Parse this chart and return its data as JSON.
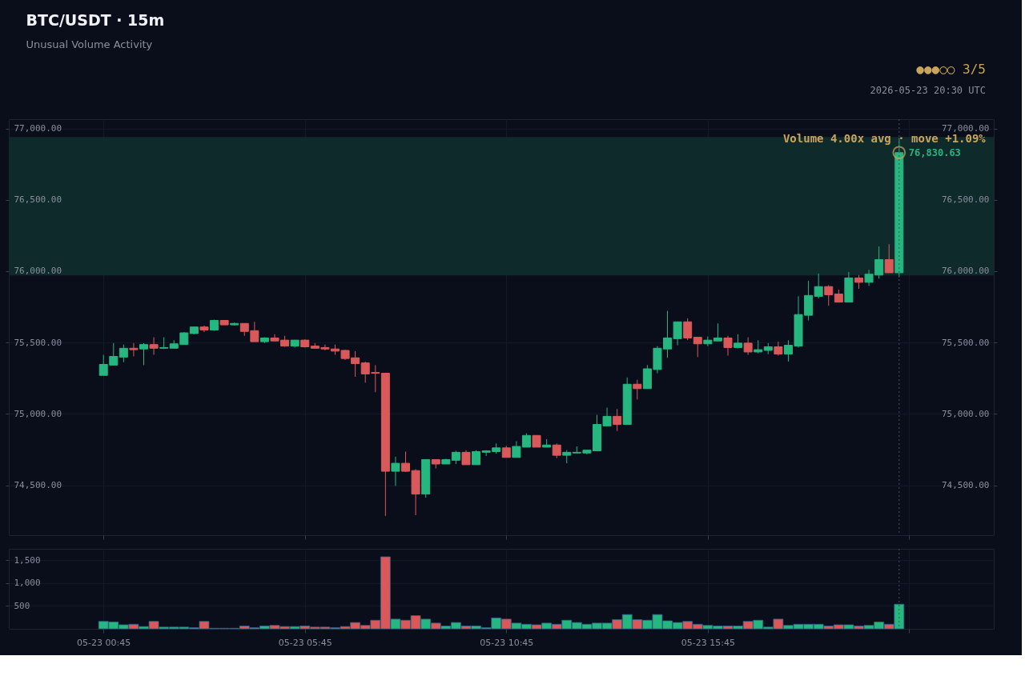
{
  "chart_data": [
    {
      "type": "candlestick",
      "title": "BTC/USDT  ·  15m",
      "subtitle": "Unusual Volume Activity",
      "annotations": [
        {
          "text": "Volume 4.00x avg  ·  move +1.09%",
          "x": "2026-05-23T20:30",
          "y": 76925
        },
        {
          "text": "76,830.63",
          "x": "2026-05-23T20:30",
          "y": 76830.63
        },
        "●●●○○  3/5",
        "2026-05-23 20:30 UTC"
      ],
      "x": [
        "2026-05-23T00:45",
        "2026-05-23T01:00",
        "2026-05-23T01:15",
        "2026-05-23T01:30",
        "2026-05-23T01:45",
        "2026-05-23T02:00",
        "2026-05-23T02:15",
        "2026-05-23T02:30",
        "2026-05-23T02:45",
        "2026-05-23T03:00",
        "2026-05-23T03:15",
        "2026-05-23T03:30",
        "2026-05-23T03:45",
        "2026-05-23T04:00",
        "2026-05-23T04:15",
        "2026-05-23T04:30",
        "2026-05-23T04:45",
        "2026-05-23T05:00",
        "2026-05-23T05:15",
        "2026-05-23T05:30",
        "2026-05-23T05:45",
        "2026-05-23T06:00",
        "2026-05-23T06:15",
        "2026-05-23T06:30",
        "2026-05-23T06:45",
        "2026-05-23T07:00",
        "2026-05-23T07:15",
        "2026-05-23T07:30",
        "2026-05-23T07:45",
        "2026-05-23T08:00",
        "2026-05-23T08:15",
        "2026-05-23T08:30",
        "2026-05-23T08:45",
        "2026-05-23T09:00",
        "2026-05-23T09:15",
        "2026-05-23T09:30",
        "2026-05-23T09:45",
        "2026-05-23T10:00",
        "2026-05-23T10:15",
        "2026-05-23T10:30",
        "2026-05-23T10:45",
        "2026-05-23T11:00",
        "2026-05-23T11:15",
        "2026-05-23T11:30",
        "2026-05-23T11:45",
        "2026-05-23T12:00",
        "2026-05-23T12:15",
        "2026-05-23T12:30",
        "2026-05-23T12:45",
        "2026-05-23T13:00",
        "2026-05-23T13:15",
        "2026-05-23T13:30",
        "2026-05-23T13:45",
        "2026-05-23T14:00",
        "2026-05-23T14:15",
        "2026-05-23T14:30",
        "2026-05-23T14:45",
        "2026-05-23T15:00",
        "2026-05-23T15:15",
        "2026-05-23T15:30",
        "2026-05-23T15:45",
        "2026-05-23T16:00",
        "2026-05-23T16:15",
        "2026-05-23T16:30",
        "2026-05-23T16:45",
        "2026-05-23T17:00",
        "2026-05-23T17:15",
        "2026-05-23T17:30",
        "2026-05-23T17:45",
        "2026-05-23T18:00",
        "2026-05-23T18:15",
        "2026-05-23T18:30",
        "2026-05-23T18:45",
        "2026-05-23T19:00",
        "2026-05-23T19:15",
        "2026-05-23T19:30",
        "2026-05-23T19:45",
        "2026-05-23T20:00",
        "2026-05-23T20:15",
        "2026-05-23T20:30"
      ],
      "ohlc": [
        [
          75270,
          75414,
          75270,
          75347
        ],
        [
          75342,
          75496,
          75342,
          75403
        ],
        [
          75398,
          75486,
          75362,
          75460
        ],
        [
          75460,
          75496,
          75403,
          75450
        ],
        [
          75455,
          75496,
          75342,
          75486
        ],
        [
          75486,
          75537,
          75414,
          75460
        ],
        [
          75460,
          75537,
          75455,
          75465
        ],
        [
          75460,
          75516,
          75460,
          75491
        ],
        [
          75486,
          75573,
          75486,
          75568
        ],
        [
          75563,
          75609,
          75558,
          75609
        ],
        [
          75609,
          75619,
          75573,
          75588
        ],
        [
          75588,
          75660,
          75583,
          75655
        ],
        [
          75655,
          75655,
          75624,
          75624
        ],
        [
          75624,
          75640,
          75619,
          75634
        ],
        [
          75634,
          75634,
          75547,
          75578
        ],
        [
          75583,
          75645,
          75506,
          75506
        ],
        [
          75506,
          75537,
          75496,
          75532
        ],
        [
          75532,
          75558,
          75511,
          75511
        ],
        [
          75517,
          75547,
          75470,
          75475
        ],
        [
          75475,
          75517,
          75465,
          75517
        ],
        [
          75517,
          75522,
          75465,
          75470
        ],
        [
          75475,
          75496,
          75460,
          75460
        ],
        [
          75465,
          75486,
          75445,
          75455
        ],
        [
          75455,
          75486,
          75414,
          75440
        ],
        [
          75445,
          75450,
          75378,
          75388
        ],
        [
          75393,
          75440,
          75260,
          75352
        ],
        [
          75357,
          75367,
          75219,
          75280
        ],
        [
          75290,
          75342,
          75152,
          75285
        ],
        [
          75285,
          75285,
          74285,
          74598
        ],
        [
          74598,
          74700,
          74495,
          74654
        ],
        [
          74654,
          74736,
          74593,
          74598
        ],
        [
          74603,
          74613,
          74290,
          74438
        ],
        [
          74438,
          74680,
          74413,
          74680
        ],
        [
          74680,
          74680,
          74618,
          74649
        ],
        [
          74649,
          74685,
          74649,
          74680
        ],
        [
          74675,
          74741,
          74649,
          74731
        ],
        [
          74731,
          74746,
          74644,
          74644
        ],
        [
          74644,
          74746,
          74644,
          74736
        ],
        [
          74731,
          74746,
          74705,
          74741
        ],
        [
          74736,
          74793,
          74721,
          74762
        ],
        [
          74762,
          74777,
          74695,
          74695
        ],
        [
          74695,
          74808,
          74695,
          74772
        ],
        [
          74767,
          74864,
          74767,
          74849
        ],
        [
          74849,
          74849,
          74767,
          74767
        ],
        [
          74767,
          74823,
          74767,
          74782
        ],
        [
          74782,
          74793,
          74690,
          74710
        ],
        [
          74710,
          74746,
          74654,
          74731
        ],
        [
          74726,
          74772,
          74726,
          74731
        ],
        [
          74726,
          74746,
          74716,
          74746
        ],
        [
          74741,
          74993,
          74741,
          74926
        ],
        [
          74916,
          75044,
          74916,
          74983
        ],
        [
          74983,
          75034,
          74880,
          74926
        ],
        [
          74926,
          75255,
          74926,
          75208
        ],
        [
          75208,
          75239,
          75101,
          75177
        ],
        [
          75177,
          75342,
          75177,
          75316
        ],
        [
          75311,
          75475,
          75285,
          75460
        ],
        [
          75455,
          75722,
          75393,
          75532
        ],
        [
          75527,
          75645,
          75481,
          75645
        ],
        [
          75645,
          75670,
          75517,
          75532
        ],
        [
          75537,
          75537,
          75398,
          75491
        ],
        [
          75491,
          75542,
          75475,
          75517
        ],
        [
          75511,
          75634,
          75511,
          75532
        ],
        [
          75532,
          75547,
          75409,
          75465
        ],
        [
          75465,
          75558,
          75460,
          75496
        ],
        [
          75496,
          75537,
          75414,
          75434
        ],
        [
          75434,
          75516,
          75424,
          75450
        ],
        [
          75445,
          75496,
          75419,
          75470
        ],
        [
          75470,
          75506,
          75409,
          75419
        ],
        [
          75419,
          75516,
          75367,
          75481
        ],
        [
          75475,
          75824,
          75465,
          75696
        ],
        [
          75691,
          75932,
          75655,
          75830
        ],
        [
          75824,
          75984,
          75809,
          75892
        ],
        [
          75892,
          75902,
          75758,
          75835
        ],
        [
          75840,
          75871,
          75783,
          75783
        ],
        [
          75783,
          75994,
          75783,
          75953
        ],
        [
          75953,
          75973,
          75876,
          75922
        ],
        [
          75922,
          76009,
          75897,
          75979
        ],
        [
          75973,
          76174,
          75948,
          76081
        ],
        [
          76081,
          76189,
          75989,
          75989
        ],
        [
          75989,
          76933,
          75958,
          76830.63
        ]
      ],
      "colors": [
        "#26b67f",
        "#26b67f",
        "#26b67f",
        "#d9595b",
        "#26b67f",
        "#d9595b",
        "#26b67f",
        "#26b67f",
        "#26b67f",
        "#26b67f",
        "#d9595b",
        "#26b67f",
        "#d9595b",
        "#26b67f",
        "#d9595b",
        "#d9595b",
        "#26b67f",
        "#d9595b",
        "#d9595b",
        "#26b67f",
        "#d9595b",
        "#d9595b",
        "#d9595b",
        "#d9595b",
        "#d9595b",
        "#d9595b",
        "#d9595b",
        "#d9595b",
        "#d9595b",
        "#26b67f",
        "#d9595b",
        "#d9595b",
        "#26b67f",
        "#d9595b",
        "#26b67f",
        "#26b67f",
        "#d9595b",
        "#26b67f",
        "#26b67f",
        "#26b67f",
        "#d9595b",
        "#26b67f",
        "#26b67f",
        "#d9595b",
        "#26b67f",
        "#d9595b",
        "#26b67f",
        "#26b67f",
        "#26b67f",
        "#26b67f",
        "#26b67f",
        "#d9595b",
        "#26b67f",
        "#d9595b",
        "#26b67f",
        "#26b67f",
        "#26b67f",
        "#26b67f",
        "#d9595b",
        "#d9595b",
        "#26b67f",
        "#26b67f",
        "#d9595b",
        "#26b67f",
        "#d9595b",
        "#26b67f",
        "#26b67f",
        "#d9595b",
        "#26b67f",
        "#26b67f",
        "#26b67f",
        "#26b67f",
        "#d9595b",
        "#d9595b",
        "#26b67f",
        "#d9595b",
        "#26b67f",
        "#26b67f",
        "#d9595b",
        "#26b67f"
      ],
      "series": [
        {
          "type": "scatter",
          "x": [
            "2026-05-23T20:30"
          ],
          "values": [
            76830.63
          ],
          "color": "#c9a45c",
          "marker": "circle"
        }
      ],
      "bands": [
        {
          "axis": "y",
          "from": 75970,
          "to": 76940,
          "color": "#0f2a2a"
        }
      ],
      "ref_lines": [
        {
          "axis": "x",
          "value": "2026-05-23T20:30",
          "color": "#4a4f5c",
          "line_style": "dotted"
        }
      ],
      "xlim": [
        "2026-05-22T22:30",
        "2026-05-23T22:45"
      ],
      "xticks": [
        {
          "value": "2026-05-23T00:45",
          "label": null
        },
        {
          "value": "2026-05-23T05:45",
          "label": null
        },
        {
          "value": "2026-05-23T10:45",
          "label": null
        },
        {
          "value": "2026-05-23T15:45",
          "label": null
        },
        {
          "value": "2026-05-23T20:45",
          "label": null
        }
      ],
      "ylim": [
        74150,
        77065
      ],
      "yticks": [
        {
          "value": 74500,
          "label": "74,500.00"
        },
        {
          "value": 75000,
          "label": "75,000.00"
        },
        {
          "value": 75500,
          "label": "75,500.00"
        },
        {
          "value": 76000,
          "label": "76,000.00"
        },
        {
          "value": 76500,
          "label": "76,500.00"
        },
        {
          "value": 77000,
          "label": "77,000.00"
        }
      ],
      "y2lim": [
        74150,
        77065
      ],
      "y2ticks": [
        {
          "value": 74500,
          "label": "74,500.00"
        },
        {
          "value": 75000,
          "label": "75,000.00"
        },
        {
          "value": 75500,
          "label": "75,500.00"
        },
        {
          "value": 76000,
          "label": "76,000.00"
        },
        {
          "value": 76500,
          "label": "76,500.00"
        },
        {
          "value": 77000,
          "label": "77,000.00"
        }
      ],
      "tick_labels": "y",
      "grid": true
    },
    {
      "type": "bar",
      "x": [
        "2026-05-23T00:45",
        "2026-05-23T01:00",
        "2026-05-23T01:15",
        "2026-05-23T01:30",
        "2026-05-23T01:45",
        "2026-05-23T02:00",
        "2026-05-23T02:15",
        "2026-05-23T02:30",
        "2026-05-23T02:45",
        "2026-05-23T03:00",
        "2026-05-23T03:15",
        "2026-05-23T03:30",
        "2026-05-23T03:45",
        "2026-05-23T04:00",
        "2026-05-23T04:15",
        "2026-05-23T04:30",
        "2026-05-23T04:45",
        "2026-05-23T05:00",
        "2026-05-23T05:15",
        "2026-05-23T05:30",
        "2026-05-23T05:45",
        "2026-05-23T06:00",
        "2026-05-23T06:15",
        "2026-05-23T06:30",
        "2026-05-23T06:45",
        "2026-05-23T07:00",
        "2026-05-23T07:15",
        "2026-05-23T07:30",
        "2026-05-23T07:45",
        "2026-05-23T08:00",
        "2026-05-23T08:15",
        "2026-05-23T08:30",
        "2026-05-23T08:45",
        "2026-05-23T09:00",
        "2026-05-23T09:15",
        "2026-05-23T09:30",
        "2026-05-23T09:45",
        "2026-05-23T10:00",
        "2026-05-23T10:15",
        "2026-05-23T10:30",
        "2026-05-23T10:45",
        "2026-05-23T11:00",
        "2026-05-23T11:15",
        "2026-05-23T11:30",
        "2026-05-23T11:45",
        "2026-05-23T12:00",
        "2026-05-23T12:15",
        "2026-05-23T12:30",
        "2026-05-23T12:45",
        "2026-05-23T13:00",
        "2026-05-23T13:15",
        "2026-05-23T13:30",
        "2026-05-23T13:45",
        "2026-05-23T14:00",
        "2026-05-23T14:15",
        "2026-05-23T14:30",
        "2026-05-23T14:45",
        "2026-05-23T15:00",
        "2026-05-23T15:15",
        "2026-05-23T15:30",
        "2026-05-23T15:45",
        "2026-05-23T16:00",
        "2026-05-23T16:15",
        "2026-05-23T16:30",
        "2026-05-23T16:45",
        "2026-05-23T17:00",
        "2026-05-23T17:15",
        "2026-05-23T17:30",
        "2026-05-23T17:45",
        "2026-05-23T18:00",
        "2026-05-23T18:15",
        "2026-05-23T18:30",
        "2026-05-23T18:45",
        "2026-05-23T19:00",
        "2026-05-23T19:15",
        "2026-05-23T19:30",
        "2026-05-23T19:45",
        "2026-05-23T20:00",
        "2026-05-23T20:15",
        "2026-05-23T20:30"
      ],
      "values": [
        162,
        150,
        88,
        100,
        50,
        162,
        38,
        38,
        38,
        25,
        162,
        12,
        12,
        12,
        62,
        25,
        62,
        75,
        50,
        50,
        62,
        38,
        38,
        25,
        50,
        138,
        75,
        188,
        1575,
        212,
        188,
        288,
        212,
        125,
        62,
        138,
        62,
        62,
        25,
        238,
        212,
        125,
        100,
        88,
        125,
        100,
        188,
        138,
        100,
        125,
        125,
        200,
        312,
        200,
        188,
        312,
        175,
        138,
        162,
        100,
        75,
        62,
        62,
        62,
        162,
        188,
        38,
        212,
        75,
        100,
        100,
        100,
        62,
        88,
        88,
        62,
        75,
        150,
        100,
        538
      ],
      "colors": [
        "#26b67f",
        "#26b67f",
        "#26b67f",
        "#d9595b",
        "#26b67f",
        "#d9595b",
        "#26b67f",
        "#26b67f",
        "#26b67f",
        "#26b67f",
        "#d9595b",
        "#26b67f",
        "#d9595b",
        "#26b67f",
        "#d9595b",
        "#d9595b",
        "#26b67f",
        "#d9595b",
        "#d9595b",
        "#26b67f",
        "#d9595b",
        "#d9595b",
        "#d9595b",
        "#d9595b",
        "#d9595b",
        "#d9595b",
        "#d9595b",
        "#d9595b",
        "#d9595b",
        "#26b67f",
        "#d9595b",
        "#d9595b",
        "#26b67f",
        "#d9595b",
        "#26b67f",
        "#26b67f",
        "#d9595b",
        "#26b67f",
        "#26b67f",
        "#26b67f",
        "#d9595b",
        "#26b67f",
        "#26b67f",
        "#d9595b",
        "#26b67f",
        "#d9595b",
        "#26b67f",
        "#26b67f",
        "#26b67f",
        "#26b67f",
        "#26b67f",
        "#d9595b",
        "#26b67f",
        "#d9595b",
        "#26b67f",
        "#26b67f",
        "#26b67f",
        "#26b67f",
        "#d9595b",
        "#d9595b",
        "#26b67f",
        "#26b67f",
        "#d9595b",
        "#26b67f",
        "#d9595b",
        "#26b67f",
        "#26b67f",
        "#d9595b",
        "#26b67f",
        "#26b67f",
        "#26b67f",
        "#26b67f",
        "#d9595b",
        "#d9595b",
        "#26b67f",
        "#d9595b",
        "#26b67f",
        "#26b67f",
        "#d9595b",
        "#26b67f"
      ],
      "ref_lines": [
        {
          "axis": "x",
          "value": "2026-05-23T20:30",
          "color": "#4a4f5c",
          "line_style": "dotted"
        }
      ],
      "xlim": [
        "2026-05-22T22:30",
        "2026-05-23T22:45"
      ],
      "xticks": [
        {
          "value": "2026-05-23T00:45",
          "label": "05-23 00:45"
        },
        {
          "value": "2026-05-23T05:45",
          "label": "05-23 05:45"
        },
        {
          "value": "2026-05-23T10:45",
          "label": "05-23 10:45"
        },
        {
          "value": "2026-05-23T15:45",
          "label": "05-23 15:45"
        },
        {
          "value": "2026-05-23T20:45",
          "label": null
        }
      ],
      "ylim": [
        0,
        1750
      ],
      "yticks": [
        500,
        {
          "value": 1000,
          "label": "1,000"
        },
        {
          "value": 1500,
          "label": "1,500"
        }
      ],
      "grid": true
    }
  ]
}
